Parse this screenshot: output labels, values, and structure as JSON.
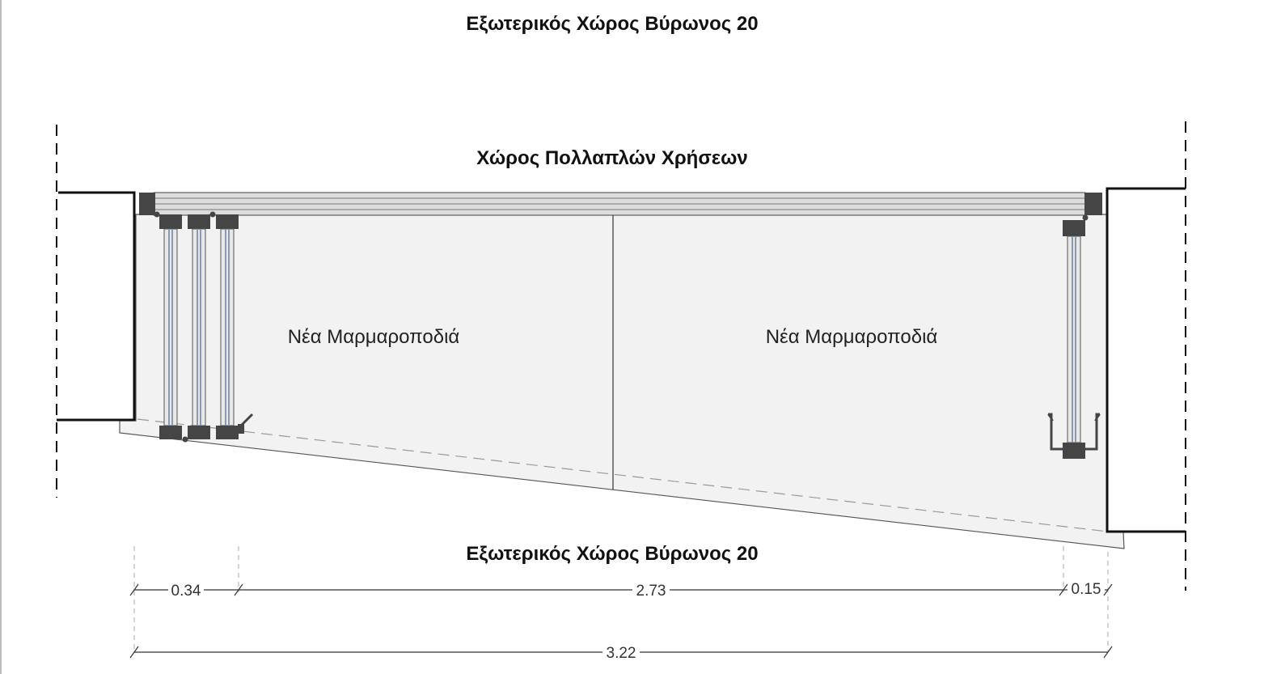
{
  "labels": {
    "top_title": "Εξωτερικός Χώρος Βύρωνος 20",
    "upper_room": "Χώρος Πολλαπλών Χρήσεων",
    "left_area": "Νέα Μαρμαροποδιά",
    "right_area": "Νέα Μαρμαροποδιά",
    "bottom_title": "Εξωτερικός Χώρος Βύρωνος 20"
  },
  "dimensions": {
    "left": "0.34",
    "middle": "2.73",
    "right": "0.15",
    "total": "3.22"
  },
  "colors": {
    "floor_fill": "#f2f2f2",
    "frame_dark": "#454545",
    "line": "#111111",
    "glass": "#8a9ab0"
  }
}
